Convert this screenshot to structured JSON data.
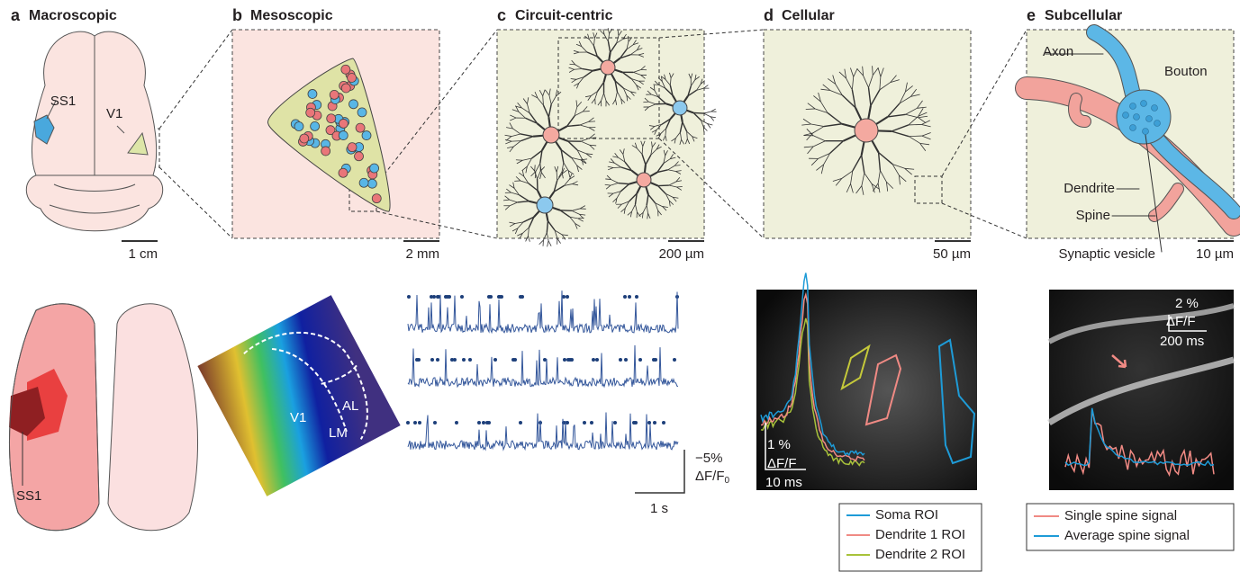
{
  "top_panels": [
    {
      "letter": "a",
      "title": "Macroscopic",
      "scale": "1 cm",
      "labels": [
        "SS1",
        "V1"
      ]
    },
    {
      "letter": "b",
      "title": "Mesoscopic",
      "scale": "2 mm"
    },
    {
      "letter": "c",
      "title": "Circuit-centric",
      "scale": "200 µm"
    },
    {
      "letter": "d",
      "title": "Cellular",
      "scale": "50 µm"
    },
    {
      "letter": "e",
      "title": "Subcellular",
      "scale": "10 µm",
      "labels": [
        "Axon",
        "Bouton",
        "Dendrite",
        "Spine",
        "Synaptic vesicle"
      ]
    }
  ],
  "bottom": {
    "brain_map": {
      "label": "SS1"
    },
    "widefield": {
      "labels": [
        "V1",
        "AL",
        "LM"
      ]
    },
    "traces": {
      "scale_y": "−5%",
      "scale_y_unit": "ΔF/F",
      "unit_subscript": "0",
      "scale_x": "1 s"
    },
    "dendrite": {
      "scale_y": "1 %",
      "scale_y_unit": "ΔF/F",
      "scale_x": "10 ms",
      "legend": [
        {
          "name": "Soma ROI",
          "color": "#1e9bd7"
        },
        {
          "name": "Dendrite 1 ROI",
          "color": "#f08a84"
        },
        {
          "name": "Dendrite 2 ROI",
          "color": "#a8c23a"
        }
      ]
    },
    "spine": {
      "scale_y": "2 %",
      "scale_y_unit": "ΔF/F",
      "scale_x": "200 ms",
      "legend": [
        {
          "name": "Single spine signal",
          "color": "#f08a84"
        },
        {
          "name": "Average spine signal",
          "color": "#1e9bd7"
        }
      ]
    }
  }
}
